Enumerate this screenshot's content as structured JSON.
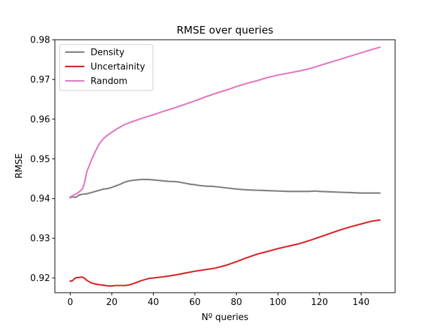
{
  "chart_data": {
    "type": "line",
    "title": "RMSE over queries",
    "xlabel": "Nº queries",
    "ylabel": "RMSE",
    "xlim": [
      -7.4,
      156.4
    ],
    "ylim": [
      0.9163,
      0.98
    ],
    "xticks": [
      0,
      20,
      40,
      60,
      80,
      100,
      120,
      140
    ],
    "yticks": [
      0.92,
      0.93,
      0.94,
      0.95,
      0.96,
      0.97,
      0.98
    ],
    "ytick_labels": [
      "0.92",
      "0.93",
      "0.94",
      "0.95",
      "0.96",
      "0.97",
      "0.98"
    ],
    "grid": false,
    "legend_position": "top-left",
    "series": [
      {
        "name": "Density",
        "color": "#7f7f7f",
        "x": [
          0,
          1,
          2,
          3,
          4,
          5,
          6,
          8,
          10,
          12,
          14,
          16,
          18,
          20,
          22,
          24,
          26,
          28,
          30,
          32,
          34,
          36,
          38,
          40,
          42,
          44,
          46,
          48,
          50,
          52,
          54,
          56,
          58,
          60,
          62,
          64,
          66,
          68,
          70,
          75,
          80,
          85,
          90,
          95,
          100,
          105,
          110,
          115,
          118,
          120,
          125,
          130,
          135,
          140,
          145,
          149
        ],
        "values": [
          0.9402,
          0.9405,
          0.9403,
          0.9404,
          0.9408,
          0.941,
          0.9411,
          0.9412,
          0.9415,
          0.9418,
          0.9421,
          0.9424,
          0.9425,
          0.9428,
          0.9432,
          0.9436,
          0.9441,
          0.9444,
          0.9446,
          0.9447,
          0.9448,
          0.9448,
          0.9448,
          0.9447,
          0.9446,
          0.9445,
          0.9444,
          0.9443,
          0.9443,
          0.9442,
          0.944,
          0.9438,
          0.9436,
          0.9435,
          0.9433,
          0.9432,
          0.9431,
          0.9431,
          0.943,
          0.9427,
          0.9424,
          0.9422,
          0.9421,
          0.942,
          0.9419,
          0.9418,
          0.9418,
          0.9418,
          0.9419,
          0.9418,
          0.9417,
          0.9416,
          0.9415,
          0.9414,
          0.9414,
          0.9414
        ]
      },
      {
        "name": "Uncertainity",
        "color": "#d62728",
        "x": [
          0,
          1,
          2,
          3,
          4,
          5,
          6,
          7,
          8,
          10,
          12,
          14,
          16,
          18,
          20,
          22,
          24,
          26,
          28,
          30,
          32,
          34,
          36,
          38,
          40,
          45,
          50,
          55,
          60,
          65,
          70,
          75,
          80,
          85,
          90,
          95,
          100,
          105,
          110,
          115,
          120,
          125,
          130,
          135,
          140,
          145,
          149
        ],
        "values": [
          0.9192,
          0.9193,
          0.9198,
          0.9201,
          0.9201,
          0.9202,
          0.9202,
          0.9199,
          0.9194,
          0.9188,
          0.9185,
          0.9183,
          0.9182,
          0.918,
          0.918,
          0.9181,
          0.9181,
          0.9181,
          0.9182,
          0.9185,
          0.9189,
          0.9193,
          0.9196,
          0.9199,
          0.92,
          0.9203,
          0.9207,
          0.9212,
          0.9217,
          0.9221,
          0.9225,
          0.9232,
          0.9241,
          0.9251,
          0.926,
          0.9267,
          0.9274,
          0.928,
          0.9286,
          0.9294,
          0.9303,
          0.9312,
          0.9321,
          0.9329,
          0.9336,
          0.9343,
          0.9346
        ]
      },
      {
        "name": "Random",
        "color": "#e377c2",
        "x": [
          0,
          1,
          2,
          3,
          4,
          5,
          6,
          7,
          8,
          9,
          10,
          12,
          14,
          16,
          18,
          20,
          22,
          24,
          26,
          28,
          30,
          35,
          40,
          45,
          50,
          55,
          60,
          65,
          70,
          75,
          80,
          85,
          90,
          95,
          100,
          105,
          110,
          115,
          120,
          125,
          130,
          135,
          140,
          145,
          149
        ],
        "values": [
          0.9404,
          0.9407,
          0.941,
          0.9412,
          0.9416,
          0.942,
          0.9425,
          0.9443,
          0.9468,
          0.9481,
          0.9495,
          0.9518,
          0.9538,
          0.9551,
          0.956,
          0.9567,
          0.9574,
          0.958,
          0.9586,
          0.959,
          0.9594,
          0.9603,
          0.9611,
          0.962,
          0.9628,
          0.9637,
          0.9646,
          0.9656,
          0.9665,
          0.9673,
          0.9682,
          0.969,
          0.9697,
          0.9705,
          0.9711,
          0.9716,
          0.9721,
          0.9727,
          0.9735,
          0.9743,
          0.9751,
          0.9759,
          0.9767,
          0.9775,
          0.9781
        ]
      }
    ]
  }
}
